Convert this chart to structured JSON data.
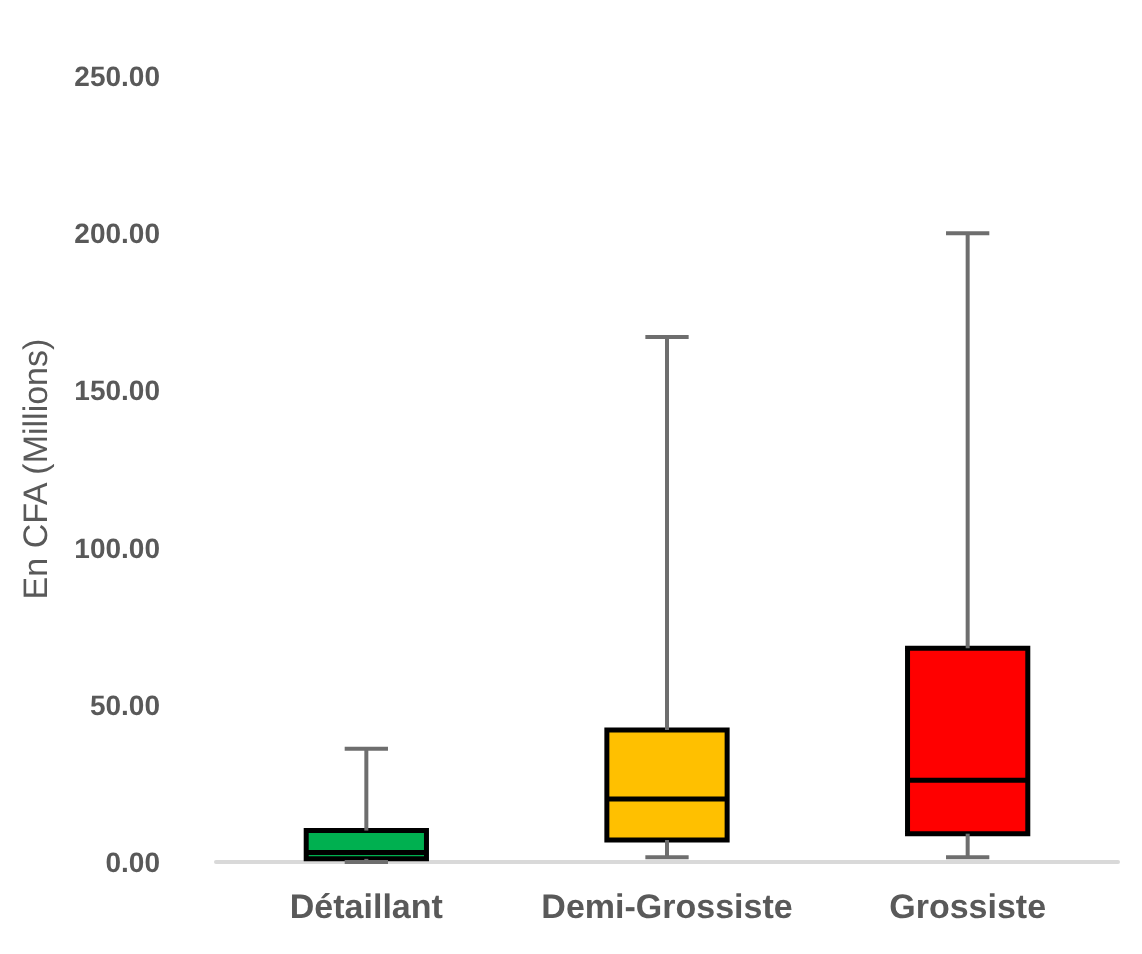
{
  "chart_data": {
    "type": "box",
    "ylabel": "En CFA (Millions)",
    "categories": [
      "Détaillant",
      "Demi-Grossiste",
      "Grossiste"
    ],
    "colors": [
      "#00b050",
      "#ffc000",
      "#ff0000"
    ],
    "boxes": [
      {
        "low": 0,
        "q1": 1,
        "median": 3,
        "q3": 10,
        "high": 36
      },
      {
        "low": 1.5,
        "q1": 7,
        "median": 20,
        "q3": 42,
        "high": 167
      },
      {
        "low": 1.5,
        "q1": 9,
        "median": 26,
        "q3": 68,
        "high": 200
      }
    ],
    "ylim": [
      0,
      250
    ],
    "yticks": [
      {
        "value": 0,
        "label": "0.00"
      },
      {
        "value": 50,
        "label": "50.00"
      },
      {
        "value": 100,
        "label": "100.00"
      },
      {
        "value": 150,
        "label": "150.00"
      },
      {
        "value": 200,
        "label": "200.00"
      },
      {
        "value": 250,
        "label": "250.00"
      }
    ],
    "grid": false
  }
}
